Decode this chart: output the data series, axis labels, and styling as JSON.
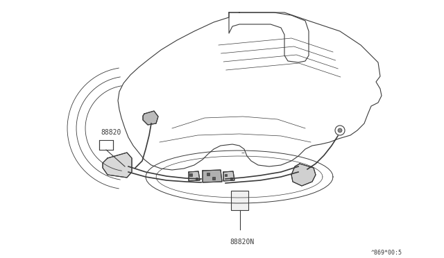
{
  "background_color": "#ffffff",
  "line_color": "#3a3a3a",
  "line_width": 0.8,
  "label_88820": "88820",
  "label_88820N": "88820N",
  "label_ref": "^869*00:5",
  "fig_width": 6.4,
  "fig_height": 3.72,
  "dpi": 100
}
